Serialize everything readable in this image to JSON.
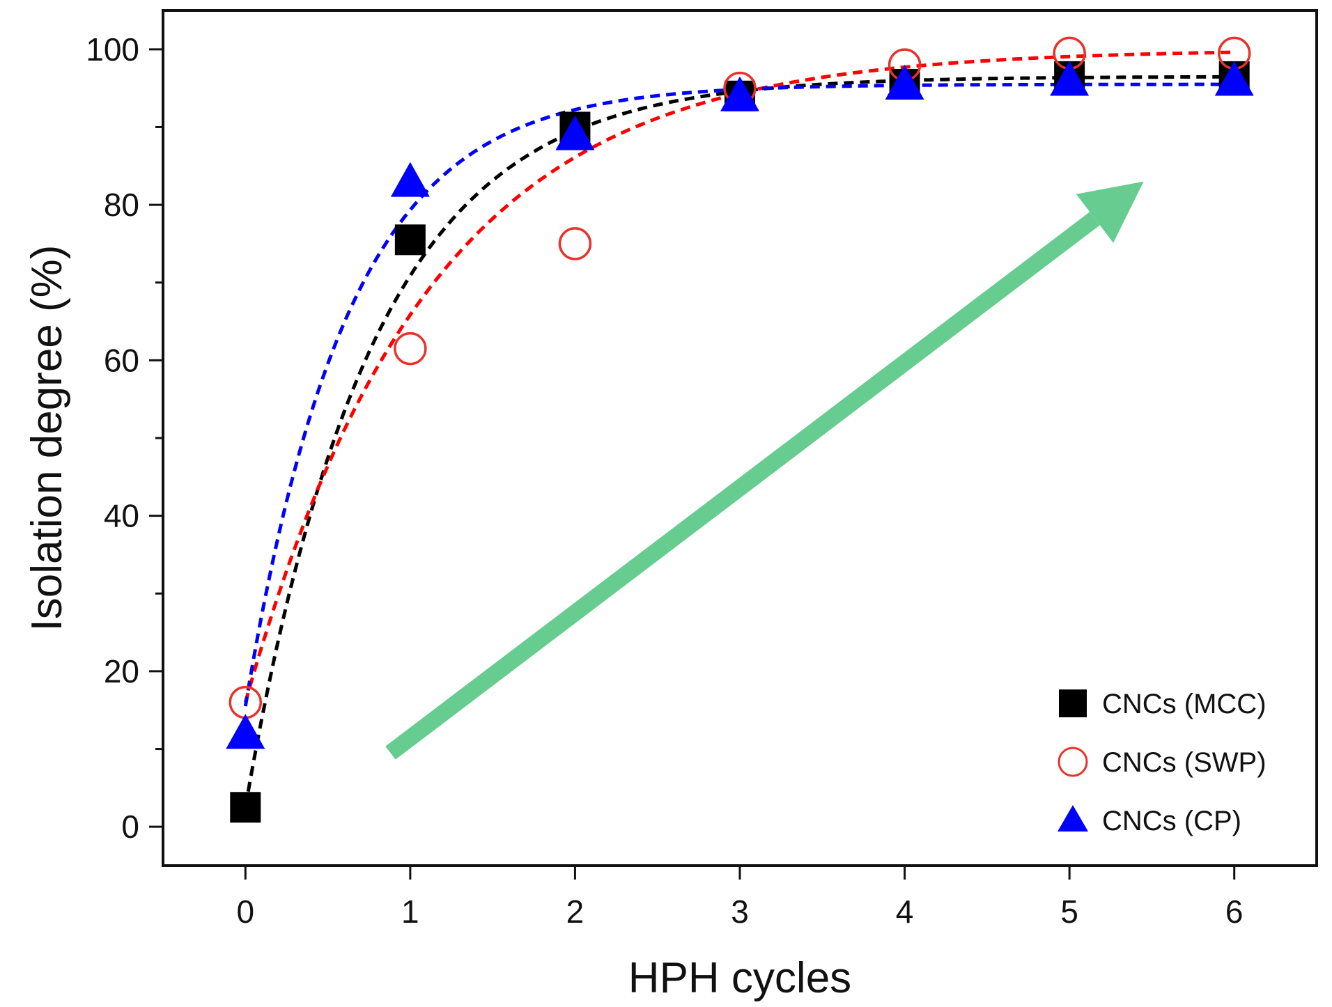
{
  "chart_data": {
    "type": "scatter",
    "title": "",
    "xlabel": "HPH cycles",
    "ylabel": "Isolation degree (%)",
    "xlim": [
      -0.5,
      6.5
    ],
    "ylim": [
      -5,
      105
    ],
    "xticks": [
      0,
      1,
      2,
      3,
      4,
      5,
      6
    ],
    "yticks": [
      0,
      20,
      40,
      60,
      80,
      100
    ],
    "xtick_labels": [
      "0",
      "1",
      "2",
      "3",
      "4",
      "5",
      "6"
    ],
    "ytick_labels": [
      "0",
      "20",
      "40",
      "60",
      "80",
      "100"
    ],
    "y_minor_step": 10,
    "grid": false,
    "legend_position": "bottom-right",
    "x": [
      0,
      1,
      2,
      3,
      4,
      5,
      6
    ],
    "series": [
      {
        "name": "CNCs (MCC)",
        "marker": "square-filled",
        "color": "#000000",
        "fit_color": "#000000",
        "values": [
          2.5,
          75.5,
          90,
          94,
          95.5,
          96.5,
          96.5
        ],
        "fit": {
          "model": "exponential",
          "a": 96.5,
          "b": 94,
          "k": 1.3
        }
      },
      {
        "name": "CNCs (SWP)",
        "marker": "circle-open",
        "color": "#e8322b",
        "fit_color": "#ff0000",
        "values": [
          16,
          61.5,
          75,
          95,
          98,
          99.5,
          99.5
        ],
        "fit": {
          "model": "exponential",
          "a": 100,
          "b": 84,
          "k": 0.9
        }
      },
      {
        "name": "CNCs (CP)",
        "marker": "triangle-filled",
        "color": "#0000ff",
        "fit_color": "#0000ff",
        "values": [
          12,
          83,
          89,
          94,
          95.5,
          96,
          96
        ],
        "fit": {
          "model": "exponential",
          "a": 95.5,
          "b": 80,
          "k": 1.6
        }
      }
    ],
    "annotations": [
      {
        "type": "arrow",
        "color": "#66cc8f",
        "from": [
          0.88,
          9.5
        ],
        "to": [
          5.45,
          83
        ]
      }
    ]
  }
}
